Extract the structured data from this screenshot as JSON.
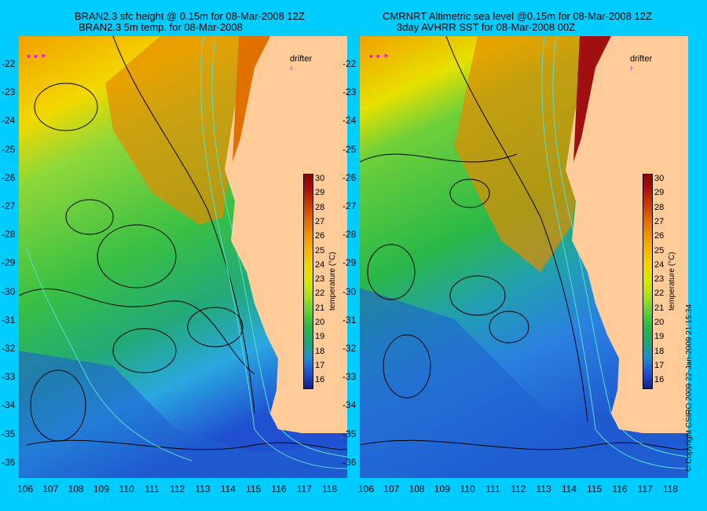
{
  "left": {
    "title_line1": "BRAN2.3 sfc height @ 0.15m for 08-Mar-2008 12Z",
    "title_line2": "BRAN2.3 5m temp. for 08-Mar-2008",
    "drifter_label": "drifter"
  },
  "right": {
    "title_line1": "CMRNRT Altimetric sea level  @0.15m  for 08-Mar-2008 12Z",
    "title_line2": "3day AVHRR SST for 08-Mar-2008 00Z",
    "drifter_label": "drifter"
  },
  "y_ticks": [
    "-22",
    "-23",
    "-24",
    "-25",
    "-26",
    "-27",
    "-28",
    "-29",
    "-30",
    "-31",
    "-32",
    "-33",
    "-34",
    "-35",
    "-36"
  ],
  "x_ticks": [
    "106",
    "107",
    "108",
    "109",
    "110",
    "111",
    "112",
    "113",
    "114",
    "115",
    "116",
    "117",
    "118"
  ],
  "colorbar": {
    "ticks": [
      "30",
      "29",
      "28",
      "27",
      "26",
      "25",
      "24",
      "23",
      "22",
      "21",
      "20",
      "19",
      "18",
      "17",
      "16"
    ],
    "unit_label": "temperature (°C)",
    "colors": [
      "#8b0000",
      "#b01010",
      "#d03c00",
      "#e56a00",
      "#f29400",
      "#f6b800",
      "#f2d600",
      "#d8e600",
      "#a4e01e",
      "#5fd132",
      "#28b844",
      "#1ea870",
      "#1f8fd0",
      "#2050d0",
      "#1a1a90"
    ]
  },
  "copyright": "© Copyright CSIRO 2009   22-Jan-2009 21:15:34",
  "colors": {
    "background": "#00ccff",
    "land": "#ffcc99",
    "contour": "#000000",
    "isobath": "#55e0d0",
    "drifter": "#ff00ff"
  }
}
